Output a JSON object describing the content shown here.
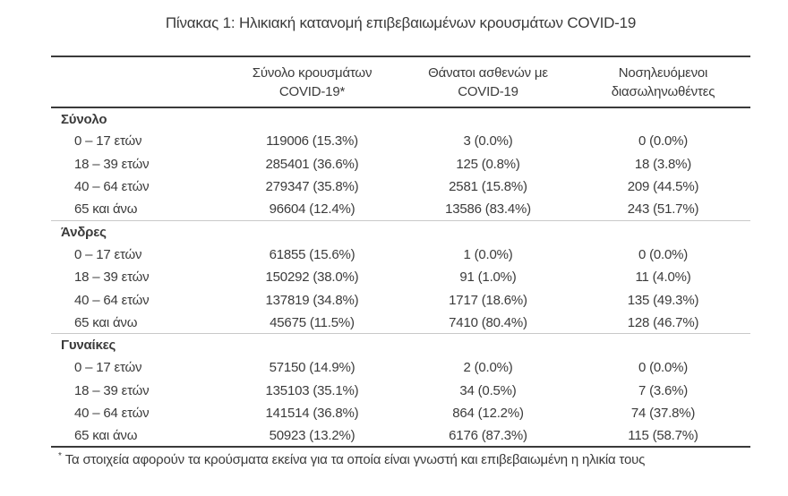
{
  "title": "Πίνακας 1: Ηλικιακή κατανομή επιβεβαιωμένων κρουσμάτων COVID-19",
  "colors": {
    "text": "#3b3b3b",
    "rule_dark": "#3a3a3a",
    "rule_light": "#c9c9c9",
    "background": "#ffffff"
  },
  "table": {
    "columns": [
      {
        "line1": "Σύνολο κρουσμάτων",
        "line2": "COVID-19*"
      },
      {
        "line1": "Θάνατοι ασθενών με",
        "line2": "COVID-19"
      },
      {
        "line1": "Νοσηλευόμενοι",
        "line2": "διασωληνωθέντες"
      }
    ],
    "sections": [
      {
        "label": "Σύνολο",
        "rows": [
          {
            "label": "0 – 17 ετών",
            "cases": "119006 (15.3%)",
            "deaths": "3 (0.0%)",
            "intubated": "0 (0.0%)"
          },
          {
            "label": "18 – 39 ετών",
            "cases": "285401 (36.6%)",
            "deaths": "125 (0.8%)",
            "intubated": "18 (3.8%)"
          },
          {
            "label": "40 – 64 ετών",
            "cases": "279347 (35.8%)",
            "deaths": "2581 (15.8%)",
            "intubated": "209 (44.5%)"
          },
          {
            "label": "65 και άνω",
            "cases": "96604 (12.4%)",
            "deaths": "13586 (83.4%)",
            "intubated": "243 (51.7%)"
          }
        ]
      },
      {
        "label": "Άνδρες",
        "rows": [
          {
            "label": "0 – 17 ετών",
            "cases": "61855 (15.6%)",
            "deaths": "1 (0.0%)",
            "intubated": "0 (0.0%)"
          },
          {
            "label": "18 – 39 ετών",
            "cases": "150292 (38.0%)",
            "deaths": "91 (1.0%)",
            "intubated": "11 (4.0%)"
          },
          {
            "label": "40 – 64 ετών",
            "cases": "137819 (34.8%)",
            "deaths": "1717 (18.6%)",
            "intubated": "135 (49.3%)"
          },
          {
            "label": "65 και άνω",
            "cases": "45675 (11.5%)",
            "deaths": "7410 (80.4%)",
            "intubated": "128 (46.7%)"
          }
        ]
      },
      {
        "label": "Γυναίκες",
        "rows": [
          {
            "label": "0 – 17 ετών",
            "cases": "57150 (14.9%)",
            "deaths": "2 (0.0%)",
            "intubated": "0 (0.0%)"
          },
          {
            "label": "18 – 39 ετών",
            "cases": "135103 (35.1%)",
            "deaths": "34 (0.5%)",
            "intubated": "7 (3.6%)"
          },
          {
            "label": "40 – 64 ετών",
            "cases": "141514 (36.8%)",
            "deaths": "864 (12.2%)",
            "intubated": "74 (37.8%)"
          },
          {
            "label": "65 και άνω",
            "cases": "50923 (13.2%)",
            "deaths": "6176 (87.3%)",
            "intubated": "115 (58.7%)"
          }
        ]
      }
    ]
  },
  "footnote": {
    "marker": "*",
    "text": "Τα στοιχεία αφορούν τα κρούσματα εκείνα για τα οποία είναι γνωστή και επιβεβαιωμένη η ηλικία τους"
  }
}
